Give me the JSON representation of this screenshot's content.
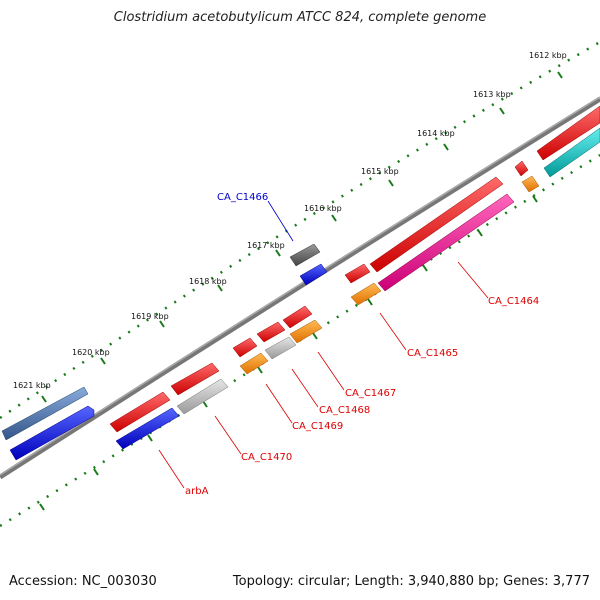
{
  "header": {
    "title": "Clostridium acetobutylicum ATCC 824, complete genome"
  },
  "footer": {
    "accession": "Accession: NC_003030",
    "summary": "Topology: circular; Length: 3,940,880 bp; Genes: 3,777"
  },
  "scale_labels": [
    "1612 kbp",
    "1613 kbp",
    "1614 kbp",
    "1615 kbp",
    "1616 kbp",
    "1617 kbp",
    "1618 kbp",
    "1619 kbp",
    "1620 kbp",
    "1621 kbp"
  ],
  "gene_labels": {
    "ca_c1466": "CA_C1466",
    "ca_c1464": "CA_C1464",
    "ca_c1465": "CA_C1465",
    "ca_c1467": "CA_C1467",
    "ca_c1468": "CA_C1468",
    "ca_c1469": "CA_C1469",
    "ca_c1470": "CA_C1470",
    "arba": "arbA"
  },
  "colors": {
    "backbone": "#777777",
    "scale_dots": "#1a7a1a",
    "red": "#ee1111",
    "orange": "#ff8800",
    "pink": "#ee1188",
    "cyan": "#11bbbb",
    "blue": "#1111ee",
    "steel_blue": "#4477aa",
    "gray": "#666666",
    "light_gray": "#bbbbbb",
    "label_red": "#dd0000",
    "label_blue": "#0000cc"
  }
}
